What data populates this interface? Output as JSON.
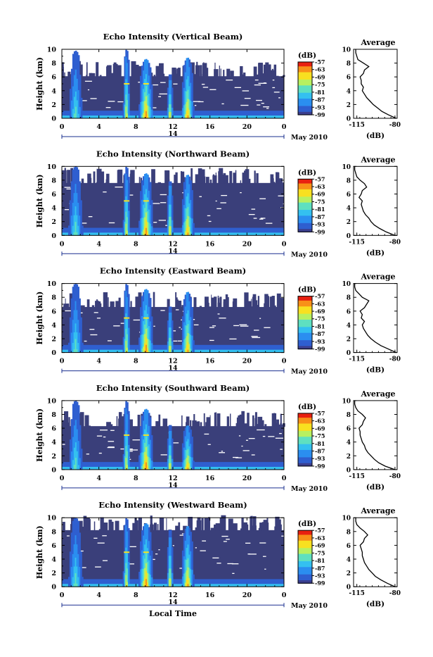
{
  "colors": {
    "background": "#3a3f7a",
    "colormap": [
      "#3b3f8f",
      "#2f5fd0",
      "#2b8ef0",
      "#34c0f0",
      "#5fe0c0",
      "#b8f060",
      "#f8e020",
      "#f89018",
      "#e82010"
    ]
  },
  "chart_data": [
    {
      "type": "heatmap",
      "title": "Echo Intensity (Vertical Beam)",
      "ylabel": "Height (km)",
      "xlabel": "",
      "x_ticks": [
        "0",
        "4",
        "8",
        "12",
        "16",
        "20",
        "0"
      ],
      "y_ticks": [
        "0",
        "2",
        "4",
        "6",
        "8",
        "10"
      ],
      "xlim": [
        0,
        24
      ],
      "ylim": [
        0,
        10
      ],
      "date_day": "14",
      "date_label": "May 2010",
      "colorbar": {
        "label": "(dB)",
        "ticks": [
          "-57",
          "-63",
          "-69",
          "-75",
          "-81",
          "-87",
          "-93",
          "-99"
        ],
        "range": [
          -99,
          -57
        ]
      },
      "echo_top_km": 6.1,
      "rain_events": [
        {
          "start": 0.7,
          "end": 2.2,
          "top": 9.8,
          "peak": 1.5,
          "intensity": 0.55
        },
        {
          "start": 6.6,
          "end": 7.3,
          "top": 10,
          "peak": 7.0,
          "intensity": 0.8
        },
        {
          "start": 8.3,
          "end": 9.8,
          "top": 8.6,
          "peak": 9.1,
          "intensity": 0.95
        },
        {
          "start": 11.4,
          "end": 12.0,
          "top": 6.5,
          "peak": 11.7,
          "intensity": 0.85
        },
        {
          "start": 13.0,
          "end": 14.3,
          "top": 8.8,
          "peak": 13.6,
          "intensity": 0.9
        }
      ],
      "average": {
        "title": "Average",
        "xlabel": "(dB)",
        "x_ticks": [
          "-115",
          "-80"
        ],
        "xlim": [
          -118,
          -78
        ],
        "y_ticks": [
          "0",
          "2",
          "4",
          "6",
          "8",
          "10"
        ],
        "height_km": [
          0,
          0.5,
          1,
          1.5,
          2,
          2.5,
          3,
          3.5,
          4,
          4.5,
          5,
          5.5,
          6,
          6.5,
          7,
          7.5,
          8,
          8.5,
          9,
          9.5,
          10
        ],
        "power_db": [
          -79,
          -86,
          -92,
          -96,
          -100,
          -103,
          -106,
          -108,
          -110,
          -109,
          -111,
          -111,
          -112,
          -109,
          -108,
          -104,
          -109,
          -114,
          -115,
          -116,
          -116
        ]
      }
    },
    {
      "type": "heatmap",
      "title": "Echo Intensity (Northward Beam)",
      "ylabel": "Height (km)",
      "xlabel": "",
      "x_ticks": [
        "0",
        "4",
        "8",
        "12",
        "16",
        "20",
        "0"
      ],
      "y_ticks": [
        "0",
        "2",
        "4",
        "6",
        "8",
        "10"
      ],
      "xlim": [
        0,
        24
      ],
      "ylim": [
        0,
        10
      ],
      "date_day": "14",
      "date_label": "May 2010",
      "colorbar": {
        "label": "(dB)",
        "ticks": [
          "-57",
          "-63",
          "-69",
          "-75",
          "-81",
          "-87",
          "-93",
          "-99"
        ],
        "range": [
          -99,
          -57
        ]
      },
      "echo_top_km": 7.6,
      "rain_events": [
        {
          "start": 0.7,
          "end": 2.3,
          "top": 10,
          "peak": 1.5,
          "intensity": 0.55
        },
        {
          "start": 6.6,
          "end": 7.3,
          "top": 10,
          "peak": 7.0,
          "intensity": 0.8
        },
        {
          "start": 8.3,
          "end": 9.8,
          "top": 9.0,
          "peak": 9.1,
          "intensity": 0.95
        },
        {
          "start": 11.4,
          "end": 12.0,
          "top": 8.0,
          "peak": 11.7,
          "intensity": 0.9
        },
        {
          "start": 13.0,
          "end": 14.3,
          "top": 8.8,
          "peak": 13.6,
          "intensity": 0.9
        }
      ],
      "average": {
        "title": "Average",
        "xlabel": "(dB)",
        "x_ticks": [
          "-115",
          "-80"
        ],
        "xlim": [
          -118,
          -78
        ],
        "y_ticks": [
          "0",
          "2",
          "4",
          "6",
          "8",
          "10"
        ],
        "height_km": [
          0,
          0.5,
          1,
          1.5,
          2,
          2.5,
          3,
          3.5,
          4,
          4.5,
          5,
          5.5,
          6,
          6.5,
          7,
          7.5,
          8,
          8.5,
          9,
          9.5,
          10
        ],
        "power_db": [
          -80,
          -88,
          -94,
          -99,
          -102,
          -104,
          -107,
          -109,
          -110,
          -111,
          -110,
          -113,
          -111,
          -110,
          -106,
          -108,
          -112,
          -115,
          -116,
          -117,
          -117
        ]
      }
    },
    {
      "type": "heatmap",
      "title": "Echo Intensity (Eastward Beam)",
      "ylabel": "Height (km)",
      "xlabel": "",
      "x_ticks": [
        "0",
        "4",
        "8",
        "12",
        "16",
        "20",
        "0"
      ],
      "y_ticks": [
        "0",
        "2",
        "4",
        "6",
        "8",
        "10"
      ],
      "xlim": [
        0,
        24
      ],
      "ylim": [
        0,
        10
      ],
      "date_day": "14",
      "date_label": "May 2010",
      "colorbar": {
        "label": "(dB)",
        "ticks": [
          "-57",
          "-63",
          "-69",
          "-75",
          "-81",
          "-87",
          "-93",
          "-99"
        ],
        "range": [
          -99,
          -57
        ]
      },
      "echo_top_km": 6.6,
      "rain_events": [
        {
          "start": 0.7,
          "end": 2.3,
          "top": 10,
          "peak": 1.5,
          "intensity": 0.55
        },
        {
          "start": 6.6,
          "end": 7.3,
          "top": 10,
          "peak": 7.0,
          "intensity": 0.8
        },
        {
          "start": 8.3,
          "end": 9.8,
          "top": 9.2,
          "peak": 9.1,
          "intensity": 0.95
        },
        {
          "start": 11.4,
          "end": 12.0,
          "top": 6.8,
          "peak": 11.7,
          "intensity": 0.85
        },
        {
          "start": 13.0,
          "end": 14.3,
          "top": 8.8,
          "peak": 13.6,
          "intensity": 0.9
        }
      ],
      "average": {
        "title": "Average",
        "xlabel": "(dB)",
        "x_ticks": [
          "-115",
          "-80"
        ],
        "xlim": [
          -118,
          -78
        ],
        "y_ticks": [
          "0",
          "2",
          "4",
          "6",
          "8",
          "10"
        ],
        "height_km": [
          0,
          0.5,
          1,
          1.5,
          2,
          2.5,
          3,
          3.5,
          4,
          4.5,
          5,
          5.5,
          6,
          6.5,
          7,
          7.5,
          8,
          8.5,
          9,
          9.5,
          10
        ],
        "power_db": [
          -79,
          -86,
          -93,
          -98,
          -102,
          -105,
          -107,
          -109,
          -110,
          -108,
          -111,
          -110,
          -112,
          -108,
          -106,
          -104,
          -110,
          -113,
          -116,
          -117,
          -117
        ]
      }
    },
    {
      "type": "heatmap",
      "title": "Echo Intensity (Southward Beam)",
      "ylabel": "Height (km)",
      "xlabel": "",
      "x_ticks": [
        "0",
        "4",
        "8",
        "12",
        "16",
        "20",
        "0"
      ],
      "y_ticks": [
        "0",
        "2",
        "4",
        "6",
        "8",
        "10"
      ],
      "xlim": [
        0,
        24
      ],
      "ylim": [
        0,
        10
      ],
      "date_day": "14",
      "date_label": "May 2010",
      "colorbar": {
        "label": "(dB)",
        "ticks": [
          "-57",
          "-63",
          "-69",
          "-75",
          "-81",
          "-87",
          "-93",
          "-99"
        ],
        "range": [
          -99,
          -57
        ]
      },
      "echo_top_km": 6.3,
      "rain_events": [
        {
          "start": 0.7,
          "end": 2.2,
          "top": 10,
          "peak": 1.5,
          "intensity": 0.55
        },
        {
          "start": 6.6,
          "end": 7.3,
          "top": 10,
          "peak": 7.0,
          "intensity": 0.8
        },
        {
          "start": 8.3,
          "end": 9.8,
          "top": 8.8,
          "peak": 9.1,
          "intensity": 0.95
        },
        {
          "start": 11.4,
          "end": 12.0,
          "top": 6.6,
          "peak": 11.7,
          "intensity": 0.85
        },
        {
          "start": 13.0,
          "end": 14.3,
          "top": 6.4,
          "peak": 13.6,
          "intensity": 0.9
        }
      ],
      "average": {
        "title": "Average",
        "xlabel": "(dB)",
        "x_ticks": [
          "-115",
          "-80"
        ],
        "xlim": [
          -118,
          -78
        ],
        "y_ticks": [
          "0",
          "2",
          "4",
          "6",
          "8",
          "10"
        ],
        "height_km": [
          0,
          0.5,
          1,
          1.5,
          2,
          2.5,
          3,
          3.5,
          4,
          4.5,
          5,
          5.5,
          6,
          6.5,
          7,
          7.5,
          8,
          8.5,
          9,
          9.5,
          10
        ],
        "power_db": [
          -80,
          -89,
          -95,
          -99,
          -102,
          -105,
          -107,
          -108,
          -110,
          -111,
          -112,
          -112,
          -113,
          -110,
          -109,
          -107,
          -110,
          -114,
          -116,
          -117,
          -117
        ]
      }
    },
    {
      "type": "heatmap",
      "title": "Echo Intensity (Westward Beam)",
      "ylabel": "Height (km)",
      "xlabel": "Local Time",
      "x_ticks": [
        "0",
        "4",
        "8",
        "12",
        "16",
        "20",
        "0"
      ],
      "y_ticks": [
        "0",
        "2",
        "4",
        "6",
        "8",
        "10"
      ],
      "xlim": [
        0,
        24
      ],
      "ylim": [
        0,
        10
      ],
      "date_day": "14",
      "date_label": "May 2010",
      "colorbar": {
        "label": "(dB)",
        "ticks": [
          "-57",
          "-63",
          "-69",
          "-75",
          "-81",
          "-87",
          "-93",
          "-99"
        ],
        "range": [
          -99,
          -57
        ]
      },
      "echo_top_km": 8.2,
      "rain_events": [
        {
          "start": 0.7,
          "end": 2.3,
          "top": 10,
          "peak": 1.5,
          "intensity": 0.55
        },
        {
          "start": 6.6,
          "end": 7.3,
          "top": 10,
          "peak": 7.0,
          "intensity": 0.8
        },
        {
          "start": 8.3,
          "end": 9.8,
          "top": 9.2,
          "peak": 9.1,
          "intensity": 0.95
        },
        {
          "start": 11.4,
          "end": 12.0,
          "top": 8.4,
          "peak": 11.7,
          "intensity": 0.85
        },
        {
          "start": 13.0,
          "end": 14.3,
          "top": 8.8,
          "peak": 13.6,
          "intensity": 0.9
        }
      ],
      "average": {
        "title": "Average",
        "xlabel": "(dB)",
        "x_ticks": [
          "-115",
          "-80"
        ],
        "xlim": [
          -118,
          -78
        ],
        "y_ticks": [
          "0",
          "2",
          "4",
          "6",
          "8",
          "10"
        ],
        "height_km": [
          0,
          0.5,
          1,
          1.5,
          2,
          2.5,
          3,
          3.5,
          4,
          4.5,
          5,
          5.5,
          6,
          6.5,
          7,
          7.5,
          8,
          8.5,
          9,
          9.5,
          10
        ],
        "power_db": [
          -80,
          -87,
          -93,
          -98,
          -101,
          -104,
          -106,
          -108,
          -109,
          -110,
          -110,
          -111,
          -112,
          -109,
          -108,
          -105,
          -108,
          -112,
          -115,
          -116,
          -116
        ]
      }
    }
  ]
}
